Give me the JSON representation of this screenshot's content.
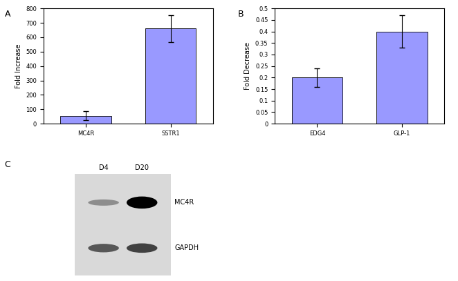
{
  "chart_data": [
    {
      "panel": "A",
      "type": "bar",
      "ylabel": "Fold Increase",
      "categories": [
        "MC4R",
        "SSTR1"
      ],
      "values": [
        55,
        660
      ],
      "errors": [
        30,
        95
      ],
      "color": "#9999ff",
      "ylim": [
        0,
        800
      ],
      "yticks": [
        0,
        100,
        200,
        300,
        400,
        500,
        600,
        700,
        800
      ]
    },
    {
      "panel": "B",
      "type": "bar",
      "ylabel": "Fold Decrease",
      "categories": [
        "EDG4",
        "GLP-1"
      ],
      "values": [
        0.2,
        0.4
      ],
      "errors": [
        0.04,
        0.07
      ],
      "color": "#9999ff",
      "ylim": [
        0,
        0.5
      ],
      "yticks": [
        0,
        0.05,
        0.1,
        0.15,
        0.2,
        0.25,
        0.3,
        0.35,
        0.4,
        0.45,
        0.5
      ]
    }
  ],
  "blot": {
    "panel": "C",
    "lanes": [
      "D4",
      "D20"
    ],
    "bands": [
      "MC4R",
      "GAPDH"
    ],
    "band_intensity": [
      [
        0.35,
        1.0
      ],
      [
        0.6,
        0.7
      ]
    ]
  }
}
